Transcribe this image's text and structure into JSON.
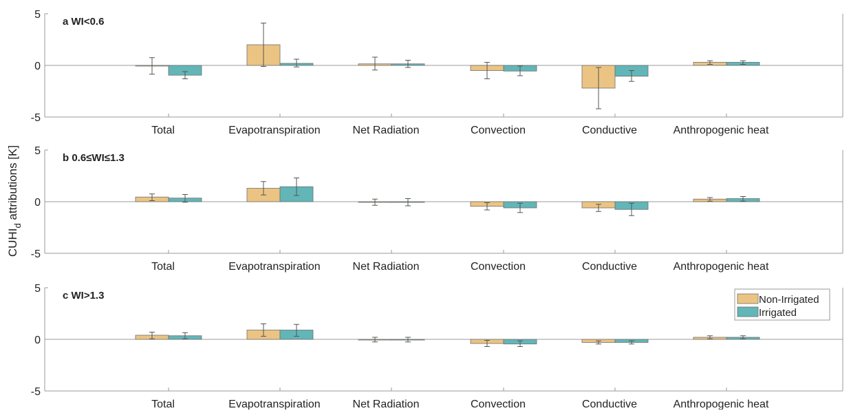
{
  "ylabel": {
    "main": "CUHI",
    "sub": "d",
    "rest": " attributions [K]"
  },
  "legend": {
    "location": "right of panel c",
    "items": [
      {
        "name": "Non-Irrigated",
        "color": "#EBC483"
      },
      {
        "name": "Irrigated",
        "color": "#62B6B8"
      }
    ]
  },
  "chart_data": [
    {
      "type": "bar",
      "title": "a  WI<0.6",
      "categories": [
        "Total",
        "Evapotranspiration",
        "Net Radiation",
        "Convection",
        "Conductive",
        "Anthropogenic heat"
      ],
      "ylim": [
        -5,
        5
      ],
      "yticks": [
        "5",
        "0",
        "-5"
      ],
      "series": [
        {
          "name": "Non-Irrigated",
          "values": [
            -0.05,
            2.0,
            0.15,
            -0.5,
            -2.2,
            0.3
          ],
          "err_low": [
            -0.85,
            -0.1,
            -0.45,
            -1.3,
            -4.2,
            0.1
          ],
          "err_high": [
            0.75,
            4.1,
            0.8,
            0.3,
            -0.2,
            0.45
          ]
        },
        {
          "name": "Irrigated",
          "values": [
            -0.95,
            0.2,
            0.15,
            -0.55,
            -1.05,
            0.3
          ],
          "err_low": [
            -1.3,
            -0.15,
            -0.2,
            -1.0,
            -1.55,
            0.1
          ],
          "err_high": [
            -0.6,
            0.6,
            0.5,
            -0.05,
            -0.5,
            0.45
          ]
        }
      ]
    },
    {
      "type": "bar",
      "title": "b  0.6≤WI≤1.3",
      "categories": [
        "Total",
        "Evapotranspiration",
        "Net Radiation",
        "Convection",
        "Conductive",
        "Anthropogenic heat"
      ],
      "ylim": [
        -5,
        5
      ],
      "yticks": [
        "5",
        "0",
        "-5"
      ],
      "series": [
        {
          "name": "Non-Irrigated",
          "values": [
            0.45,
            1.3,
            -0.05,
            -0.45,
            -0.6,
            0.25
          ],
          "err_low": [
            0.1,
            0.65,
            -0.35,
            -0.8,
            -0.95,
            0.05
          ],
          "err_high": [
            0.75,
            1.95,
            0.25,
            -0.1,
            -0.25,
            0.4
          ]
        },
        {
          "name": "Irrigated",
          "values": [
            0.35,
            1.45,
            -0.05,
            -0.6,
            -0.75,
            0.3
          ],
          "err_low": [
            -0.05,
            0.6,
            -0.4,
            -1.05,
            -1.35,
            0.05
          ],
          "err_high": [
            0.7,
            2.3,
            0.3,
            -0.15,
            -0.15,
            0.5
          ]
        }
      ]
    },
    {
      "type": "bar",
      "title": "c  WI>1.3",
      "categories": [
        "Total",
        "Evapotranspiration",
        "Net Radiation",
        "Convection",
        "Conductive",
        "Anthropogenic heat"
      ],
      "ylim": [
        -5,
        5
      ],
      "yticks": [
        "5",
        "0",
        "-5"
      ],
      "series": [
        {
          "name": "Non-Irrigated",
          "values": [
            0.4,
            0.9,
            -0.02,
            -0.4,
            -0.3,
            0.2
          ],
          "err_low": [
            0.05,
            0.3,
            -0.25,
            -0.7,
            -0.45,
            0.05
          ],
          "err_high": [
            0.7,
            1.5,
            0.2,
            -0.1,
            -0.15,
            0.35
          ]
        },
        {
          "name": "Irrigated",
          "values": [
            0.35,
            0.9,
            -0.02,
            -0.45,
            -0.3,
            0.2
          ],
          "err_low": [
            0.05,
            0.3,
            -0.25,
            -0.7,
            -0.45,
            0.05
          ],
          "err_high": [
            0.65,
            1.45,
            0.2,
            -0.15,
            -0.15,
            0.35
          ]
        }
      ]
    }
  ]
}
